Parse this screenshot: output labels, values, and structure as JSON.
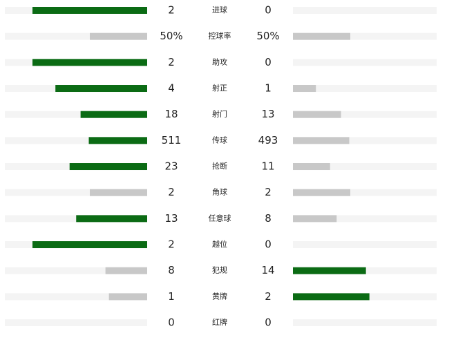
{
  "stats": [
    {
      "label": "进球",
      "home": 2,
      "away": 0
    },
    {
      "label": "控球率",
      "home": 50,
      "away": 50,
      "home_label": "50%",
      "away_label": "50%"
    },
    {
      "label": "助攻",
      "home": 2,
      "away": 0
    },
    {
      "label": "射正",
      "home": 4,
      "away": 1
    },
    {
      "label": "射门",
      "home": 18,
      "away": 13
    },
    {
      "label": "传球",
      "home": 511,
      "away": 493
    },
    {
      "label": "抢断",
      "home": 23,
      "away": 11
    },
    {
      "label": "角球",
      "home": 2,
      "away": 2
    },
    {
      "label": "任意球",
      "home": 13,
      "away": 8
    },
    {
      "label": "越位",
      "home": 2,
      "away": 0
    },
    {
      "label": "犯规",
      "home": 8,
      "away": 14
    },
    {
      "label": "黄牌",
      "home": 1,
      "away": 2
    },
    {
      "label": "红牌",
      "home": 0,
      "away": 0
    }
  ],
  "colors": {
    "leading": "#0b6b14",
    "trailing": "#c8c8c8",
    "track": "#f4f4f4"
  }
}
